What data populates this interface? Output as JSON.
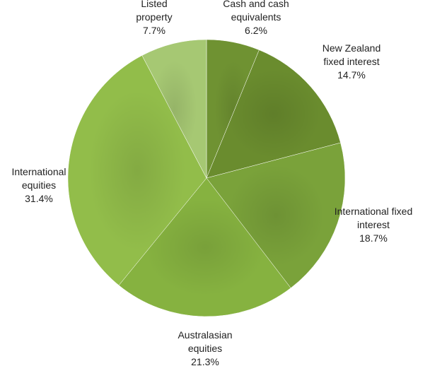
{
  "chart_data": {
    "type": "pie",
    "title": "",
    "slices": [
      {
        "label_lines": [
          "Cash and cash",
          "equivalents"
        ],
        "value": 6.2,
        "value_label": "6.2%",
        "color": "#6f9232"
      },
      {
        "label_lines": [
          "New Zealand",
          "fixed interest"
        ],
        "value": 14.7,
        "value_label": "14.7%",
        "color": "#6a8c2e"
      },
      {
        "label_lines": [
          "International fixed",
          "interest"
        ],
        "value": 18.7,
        "value_label": "18.7%",
        "color": "#7aa23a"
      },
      {
        "label_lines": [
          "Australasian",
          "equities"
        ],
        "value": 21.3,
        "value_label": "21.3%",
        "color": "#86b240"
      },
      {
        "label_lines": [
          "International",
          "equities"
        ],
        "value": 31.4,
        "value_label": "31.4%",
        "color": "#92bd4a"
      },
      {
        "label_lines": [
          "Listed",
          "property"
        ],
        "value": 7.7,
        "value_label": "7.7%",
        "color": "#a6c873"
      }
    ],
    "start_angle_deg": 0,
    "direction": "clockwise",
    "legend": "none",
    "data_labels": "outside"
  }
}
